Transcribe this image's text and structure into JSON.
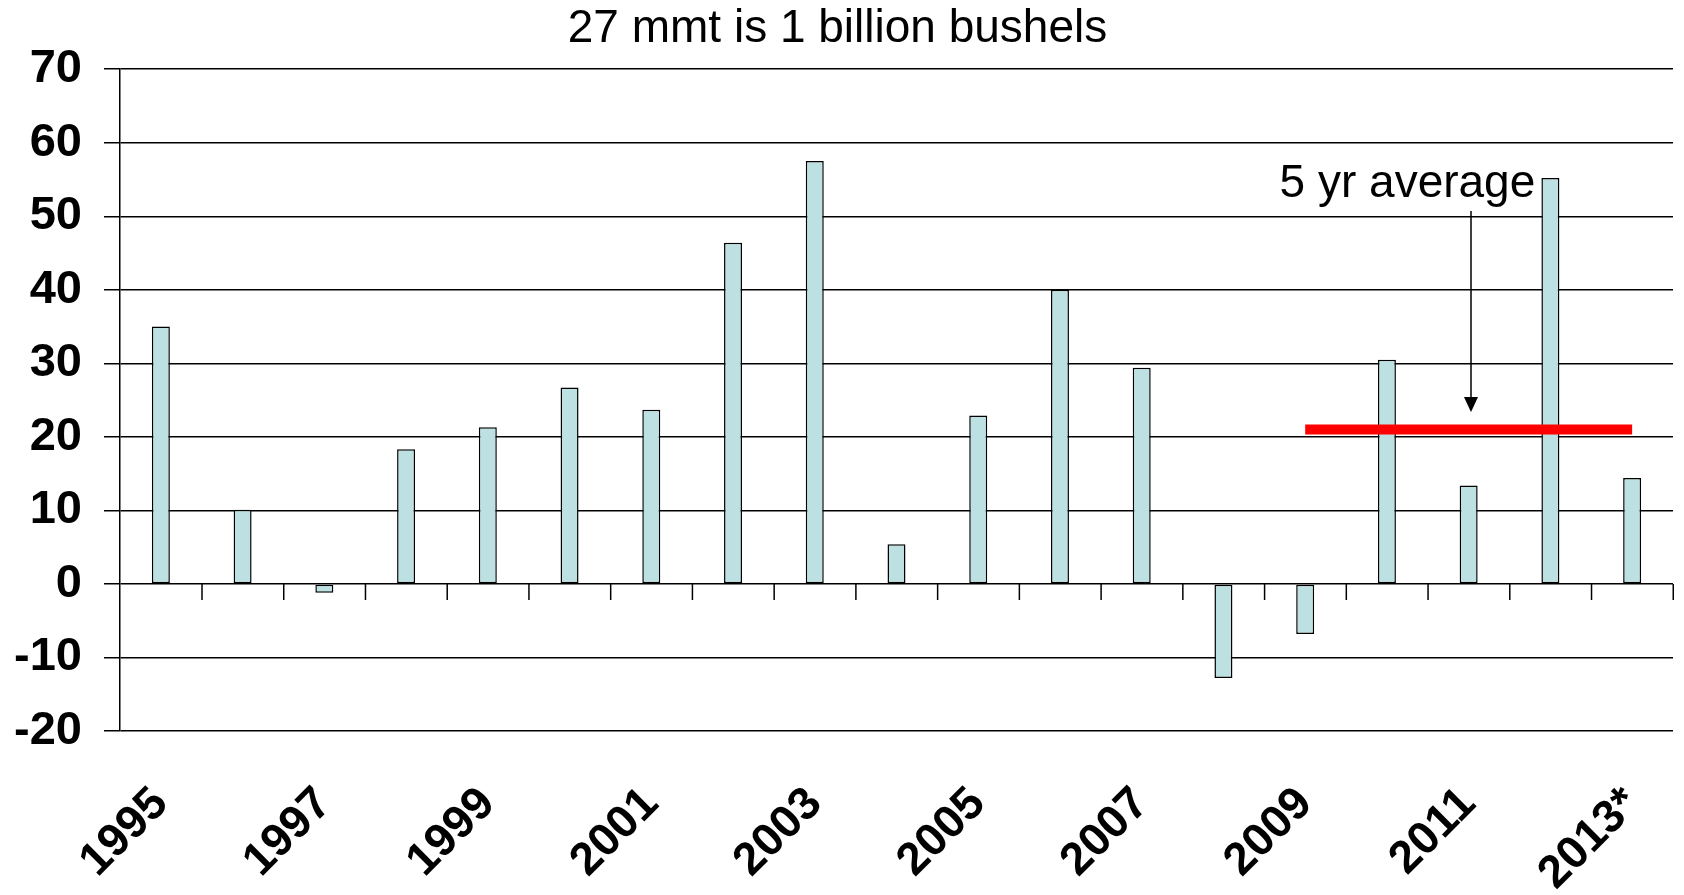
{
  "chart_data": {
    "type": "bar",
    "title": "27 mmt is 1 billion bushels",
    "categories": [
      "1995",
      null,
      "1997",
      null,
      "1999",
      null,
      "2001",
      null,
      "2003",
      null,
      "2005",
      null,
      "2007",
      null,
      "2009",
      null,
      "2011",
      null,
      "2013*"
    ],
    "series": [
      {
        "color": "#bde0e2",
        "values": [
          35,
          10.1,
          -1.2,
          18.3,
          21.3,
          26.7,
          23.7,
          46.4,
          57.5,
          5.4,
          22.9,
          40,
          29.4,
          -12.8,
          -6.8,
          30.5,
          13.4,
          55.2,
          14.4
        ]
      },
      {
        "type": "line",
        "color": "#ff0000",
        "marker": "none",
        "values": [
          null,
          null,
          null,
          null,
          null,
          null,
          null,
          null,
          null,
          null,
          null,
          null,
          null,
          null,
          21,
          21,
          21,
          21,
          21
        ]
      }
    ],
    "ylim": [
      -20,
      70
    ],
    "yticks": [
      -20,
      -10,
      0,
      10,
      20,
      30,
      40,
      50,
      60,
      70
    ],
    "grid": "y",
    "annotations": [
      "5 yr average"
    ]
  }
}
